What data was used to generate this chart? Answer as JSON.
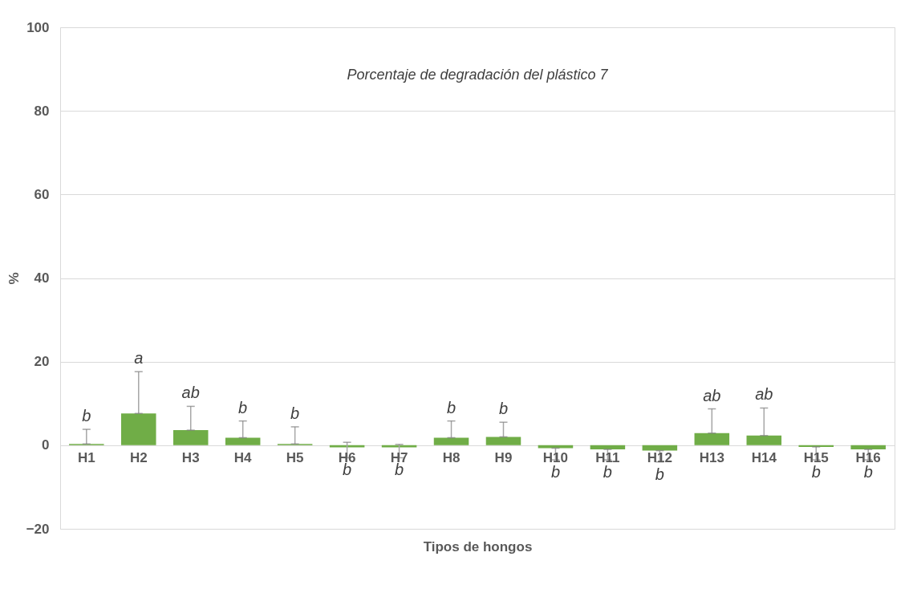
{
  "chart_data": {
    "type": "bar",
    "title": "Porcentaje de degradación del plástico 7",
    "xlabel": "Tipos de hongos",
    "ylabel": "%",
    "categories": [
      "H1",
      "H2",
      "H3",
      "H4",
      "H5",
      "H6",
      "H7",
      "H8",
      "H9",
      "H10",
      "H11",
      "H12",
      "H13",
      "H14",
      "H15",
      "H16"
    ],
    "values": [
      0.3,
      7.6,
      3.6,
      1.8,
      0.3,
      -0.5,
      -0.5,
      1.8,
      2.0,
      -0.7,
      -1.0,
      -1.3,
      2.9,
      2.3,
      -0.4,
      -1.0
    ],
    "errors": [
      [
        0.3,
        3.8
      ],
      [
        7.6,
        17.6
      ],
      [
        3.6,
        9.3
      ],
      [
        1.8,
        5.8
      ],
      [
        0.3,
        4.4
      ],
      [
        -3,
        0.7
      ],
      [
        -3,
        0.2
      ],
      [
        1.8,
        5.8
      ],
      [
        2.0,
        5.5
      ],
      [
        -3.5,
        -0.7
      ],
      [
        -3.5,
        -1.0
      ],
      [
        -4,
        -1.3
      ],
      [
        2.9,
        8.7
      ],
      [
        2.3,
        8.9
      ],
      [
        -3.5,
        -0.4
      ],
      [
        -3.5,
        -1.0
      ]
    ],
    "color": "#70ad47",
    "ylim": [
      -20,
      100
    ],
    "yticks": [
      -20,
      0,
      20,
      40,
      60,
      80,
      100
    ],
    "grid": "y",
    "annotations": [
      "b",
      "a",
      "ab",
      "b",
      "b",
      "b",
      "b",
      "b",
      "b",
      "b",
      "b",
      "b",
      "ab",
      "ab",
      "b",
      "b"
    ]
  }
}
